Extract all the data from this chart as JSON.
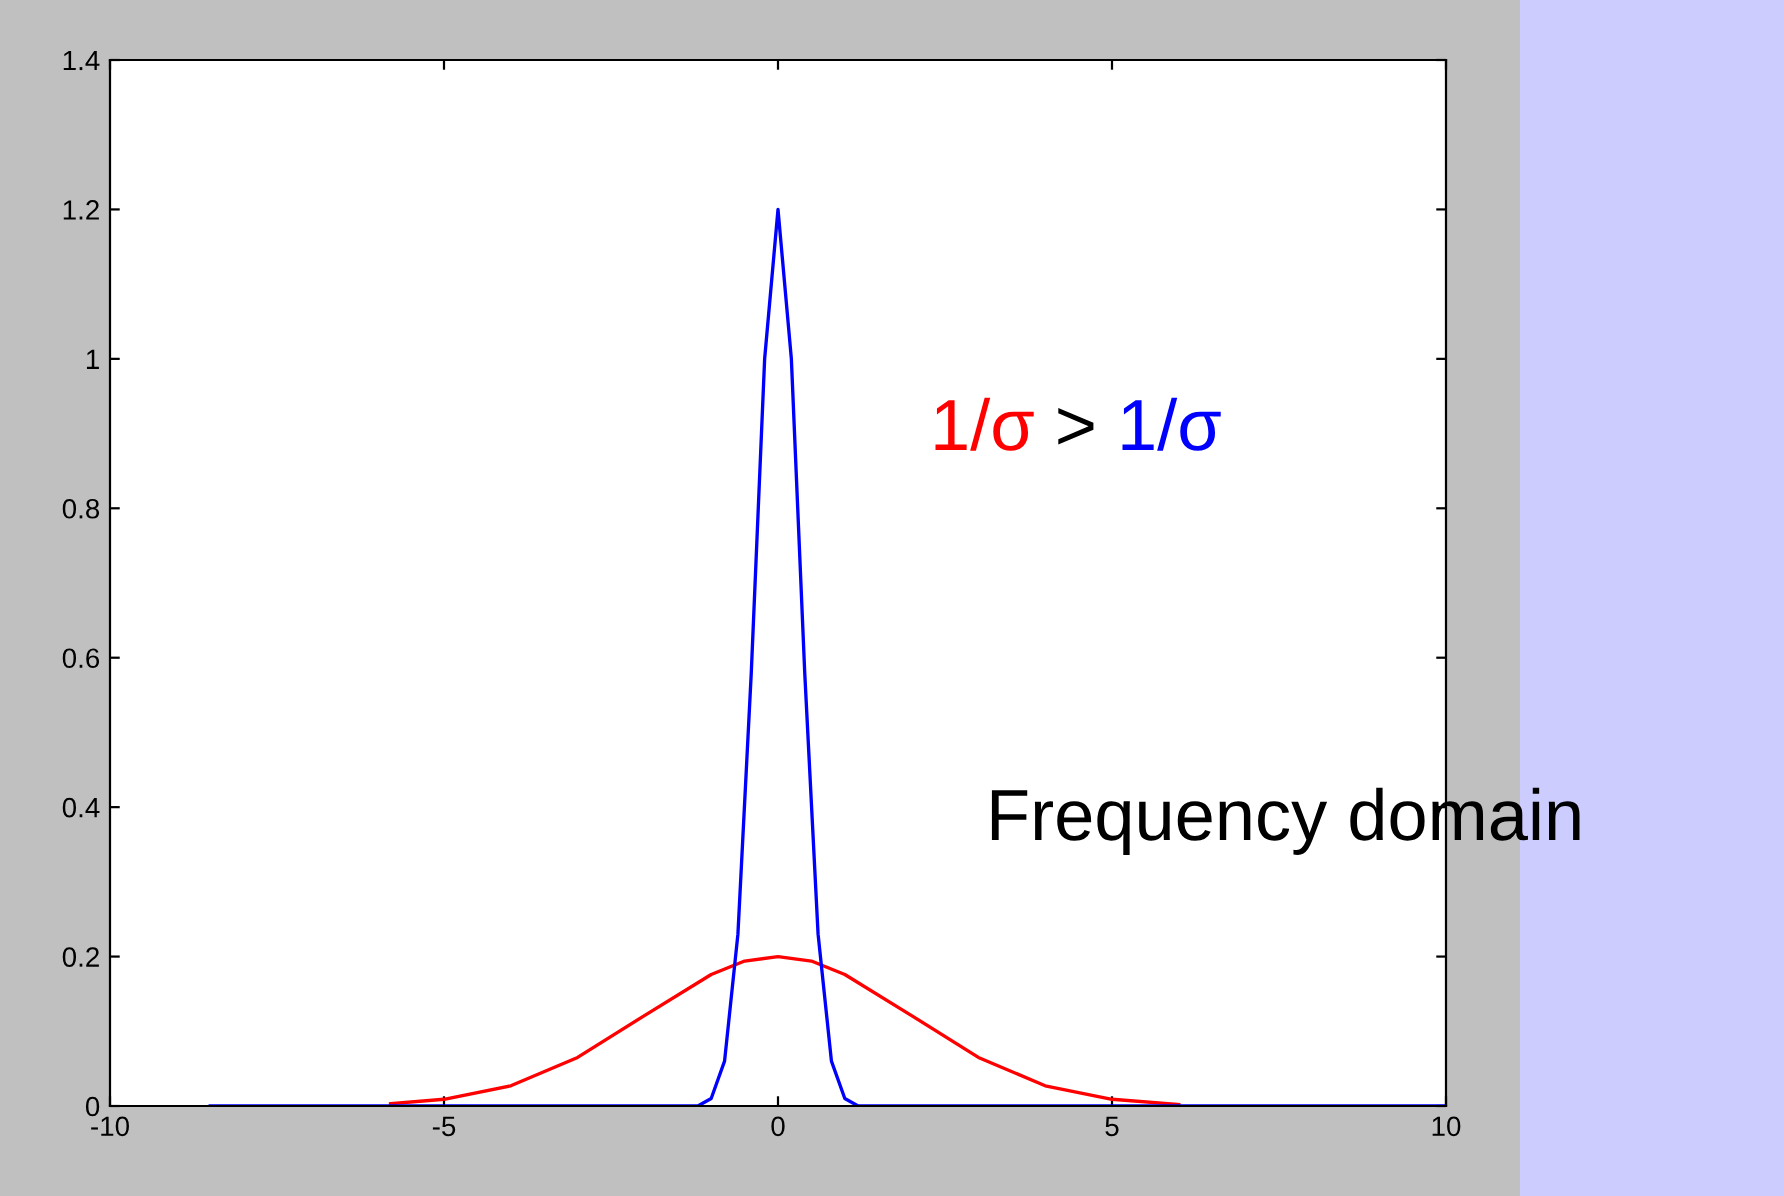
{
  "chart_data": {
    "type": "line",
    "xlim": [
      -10,
      10
    ],
    "ylim": [
      0,
      1.4
    ],
    "xticks": [
      -10,
      -5,
      0,
      5,
      10
    ],
    "yticks": [
      0,
      0.2,
      0.4,
      0.6,
      0.8,
      1,
      1.2,
      1.4
    ],
    "grid": false,
    "legend": false,
    "marker": "none",
    "line_style": "solid",
    "series": [
      {
        "color": "#ff0000",
        "x": [
          -5.8,
          -5,
          -4,
          -3,
          -2,
          -1,
          -0.5,
          0,
          0.5,
          1,
          2,
          3,
          4,
          5,
          6
        ],
        "values": [
          0.003,
          0.009,
          0.027,
          0.065,
          0.121,
          0.176,
          0.194,
          0.2,
          0.194,
          0.176,
          0.121,
          0.065,
          0.027,
          0.009,
          0.002
        ]
      },
      {
        "color": "#0000ff",
        "x": [
          -8.5,
          -1.2,
          -1,
          -0.8,
          -0.6,
          -0.4,
          -0.2,
          0,
          0.2,
          0.4,
          0.6,
          0.8,
          1,
          1.2,
          10
        ],
        "values": [
          0,
          0,
          0.01,
          0.06,
          0.23,
          0.58,
          1.0,
          1.2,
          1.0,
          0.58,
          0.23,
          0.06,
          0.01,
          0,
          0
        ]
      }
    ],
    "annotations": [
      "1/σ",
      ">",
      "1/σ",
      "Frequency domain"
    ]
  }
}
